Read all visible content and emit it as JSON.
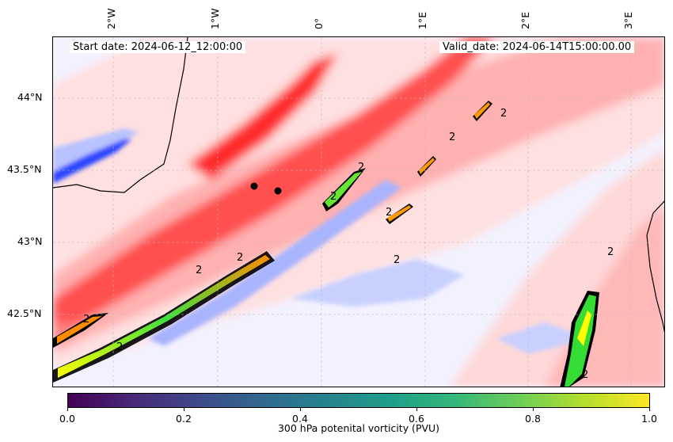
{
  "map": {
    "lon_labels": [
      "2°W",
      "1°W",
      "0°",
      "1°E",
      "2°E",
      "3°E"
    ],
    "lat_labels": [
      "44°N",
      "43.5°N",
      "43°N",
      "42.5°N"
    ],
    "start_date": "Start date: 2024-06-12_12:00:00",
    "valid_date": "Valid_date: 2024-06-14T15:00:00.00",
    "contour_label": "2",
    "field_colors": {
      "positive_strong": "#ff0000",
      "positive_mid": "#ff7a7a",
      "positive_weak": "#ffd4d4",
      "negative_weak": "#d6dcff",
      "negative_strong": "#2040ff",
      "contour": "#000000"
    }
  },
  "colorbar": {
    "title": "300 hPa potenital vorticity (PVU)",
    "ticks": [
      "0.0",
      "0.2",
      "0.4",
      "0.6",
      "0.8",
      "1.0"
    ],
    "colormap": "viridis",
    "range": [
      0.0,
      1.0
    ]
  }
}
